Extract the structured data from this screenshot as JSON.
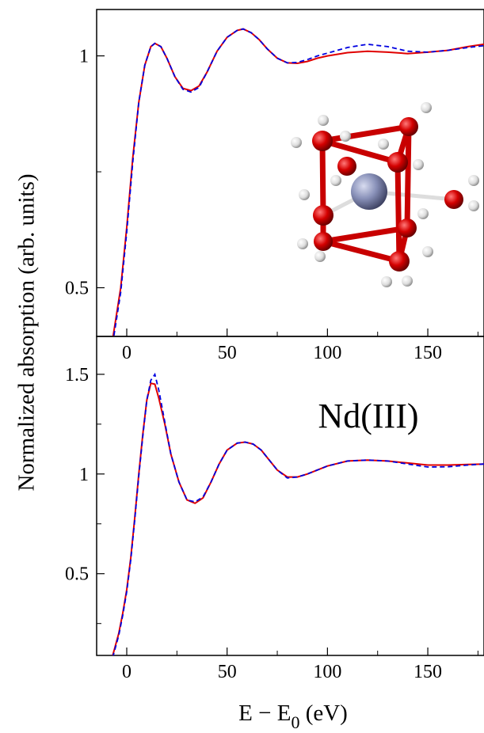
{
  "chart_data": [
    {
      "type": "line",
      "ylabel": "Normalized absorption (arb. units)",
      "xlim": [
        -15,
        178
      ],
      "xticks": [
        0,
        50,
        100,
        150
      ],
      "xminor": [
        25,
        75,
        125,
        175
      ],
      "ylim": [
        0.395,
        1.1
      ],
      "yticks": [
        {
          "value": 0.5,
          "label": "0.5"
        },
        1
      ],
      "yminor": [
        0.75
      ],
      "x": [
        -7,
        -3,
        0,
        3,
        6,
        9,
        12,
        14,
        17,
        20,
        24,
        28,
        32,
        36,
        40,
        45,
        50,
        55,
        58,
        62,
        66,
        70,
        75,
        80,
        85,
        90,
        95,
        100,
        110,
        120,
        130,
        140,
        150,
        160,
        170,
        178
      ],
      "series": [
        {
          "color": "#e00000",
          "dash": false,
          "values": [
            0.39,
            0.5,
            0.63,
            0.78,
            0.9,
            0.98,
            1.02,
            1.027,
            1.02,
            0.995,
            0.955,
            0.93,
            0.925,
            0.935,
            0.965,
            1.01,
            1.04,
            1.055,
            1.058,
            1.05,
            1.035,
            1.015,
            0.995,
            0.985,
            0.984,
            0.988,
            0.995,
            1.0,
            1.007,
            1.01,
            1.008,
            1.005,
            1.008,
            1.012,
            1.02,
            1.025
          ]
        },
        {
          "color": "#0000e0",
          "dash": true,
          "values": [
            0.38,
            0.49,
            0.62,
            0.77,
            0.9,
            0.98,
            1.02,
            1.027,
            1.02,
            0.995,
            0.955,
            0.928,
            0.922,
            0.932,
            0.965,
            1.01,
            1.04,
            1.055,
            1.058,
            1.05,
            1.035,
            1.015,
            0.995,
            0.985,
            0.986,
            0.992,
            1.0,
            1.006,
            1.018,
            1.025,
            1.02,
            1.01,
            1.008,
            1.012,
            1.018,
            1.022
          ]
        }
      ]
    },
    {
      "type": "line",
      "xlabel": {
        "main": "E − E",
        "sub": "0",
        "unit": " (eV)"
      },
      "annotation": "Nd(III)",
      "xlim": [
        -15,
        178
      ],
      "xticks": [
        0,
        50,
        100,
        150
      ],
      "xminor": [
        25,
        75,
        125,
        175
      ],
      "ylim": [
        0.09,
        1.69
      ],
      "yticks": [
        {
          "value": 0.5,
          "label": "0.5"
        },
        1,
        1.5
      ],
      "yminor": [
        0.25,
        0.75,
        1.25
      ],
      "x": [
        -7,
        -4,
        -2,
        0,
        2,
        4,
        6,
        8,
        10,
        12,
        14,
        16,
        19,
        22,
        26,
        30,
        34,
        38,
        42,
        46,
        50,
        55,
        59,
        63,
        67,
        71,
        75,
        80,
        85,
        90,
        100,
        110,
        120,
        130,
        140,
        150,
        160,
        170,
        178
      ],
      "series": [
        {
          "color": "#e00000",
          "dash": false,
          "values": [
            0.09,
            0.2,
            0.3,
            0.42,
            0.58,
            0.78,
            1.0,
            1.2,
            1.37,
            1.455,
            1.45,
            1.38,
            1.25,
            1.1,
            0.96,
            0.87,
            0.853,
            0.88,
            0.96,
            1.05,
            1.12,
            1.155,
            1.16,
            1.15,
            1.12,
            1.07,
            1.02,
            0.985,
            0.985,
            1.0,
            1.04,
            1.065,
            1.07,
            1.065,
            1.055,
            1.045,
            1.045,
            1.048,
            1.05
          ]
        },
        {
          "color": "#0000e0",
          "dash": true,
          "values": [
            0.08,
            0.19,
            0.29,
            0.41,
            0.57,
            0.77,
            0.99,
            1.19,
            1.37,
            1.47,
            1.5,
            1.42,
            1.26,
            1.1,
            0.96,
            0.87,
            0.86,
            0.885,
            0.96,
            1.05,
            1.12,
            1.155,
            1.16,
            1.15,
            1.12,
            1.07,
            1.02,
            0.98,
            0.985,
            1.0,
            1.04,
            1.065,
            1.07,
            1.065,
            1.05,
            1.035,
            1.036,
            1.045,
            1.05
          ]
        }
      ]
    }
  ]
}
